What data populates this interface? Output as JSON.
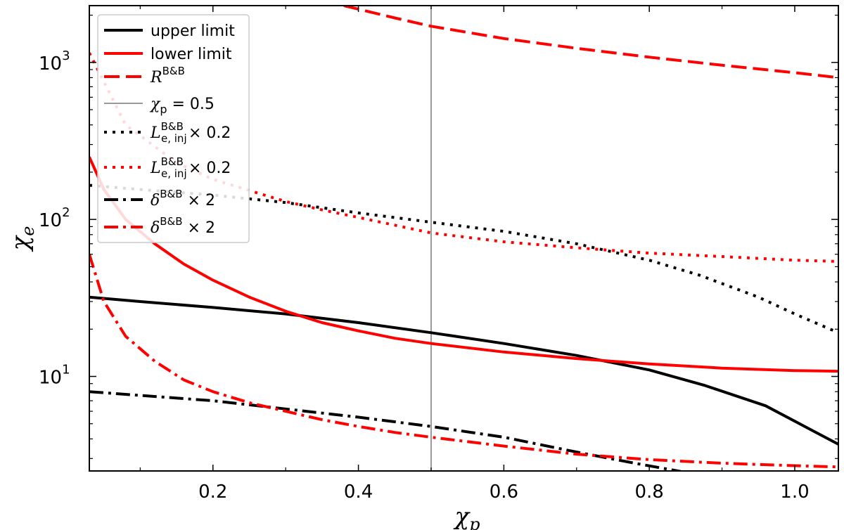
{
  "chart_data": {
    "type": "line",
    "xlabel": "χp",
    "ylabel": "χe",
    "xlim": [
      0.03,
      1.06
    ],
    "ylim": [
      2.5,
      2300
    ],
    "yscale": "log",
    "grid": false,
    "legend_position": "top-left",
    "xticks": [
      {
        "value": 0.2,
        "label": "0.2"
      },
      {
        "value": 0.4,
        "label": "0.4"
      },
      {
        "value": 0.6,
        "label": "0.6"
      },
      {
        "value": 0.8,
        "label": "0.8"
      },
      {
        "value": 1.0,
        "label": "1.0"
      }
    ],
    "yticks": [
      {
        "value": 10,
        "base": "10",
        "exp": "1"
      },
      {
        "value": 100,
        "base": "10",
        "exp": "2"
      },
      {
        "value": 1000,
        "base": "10",
        "exp": "3"
      }
    ],
    "reference_line": {
      "x": 0.5,
      "color": "#999999"
    },
    "series": [
      {
        "legend": "upper limit",
        "color": "#000000",
        "style": "solid",
        "x": [
          0.03,
          0.1,
          0.2,
          0.3,
          0.4,
          0.5,
          0.6,
          0.7,
          0.8,
          0.875,
          0.96,
          1.06
        ],
        "y": [
          32,
          30,
          27.5,
          25,
          22,
          19,
          16.2,
          13.6,
          11,
          8.8,
          6.5,
          3.7
        ]
      },
      {
        "legend": "lower limit",
        "color": "#ff0000",
        "style": "solid",
        "x": [
          0.03,
          0.05,
          0.08,
          0.12,
          0.16,
          0.2,
          0.25,
          0.3,
          0.35,
          0.4,
          0.45,
          0.5,
          0.6,
          0.7,
          0.8,
          0.9,
          1.0,
          1.06
        ],
        "y": [
          250,
          155,
          100,
          70,
          52,
          41,
          32,
          26,
          22,
          19.5,
          17.5,
          16.2,
          14.3,
          13,
          12,
          11.3,
          10.9,
          10.8
        ]
      },
      {
        "legend": "R^B&B",
        "color": "#ff0000",
        "style": "dashed",
        "x": [
          0.38,
          0.45,
          0.5,
          0.6,
          0.7,
          0.8,
          0.9,
          1.0,
          1.06
        ],
        "y": [
          2300,
          1920,
          1700,
          1420,
          1230,
          1080,
          960,
          860,
          800
        ]
      },
      {
        "legend": "L_e,inj^B&B × 0.2",
        "color": "#000000",
        "style": "dotted",
        "x": [
          0.03,
          0.1,
          0.2,
          0.3,
          0.4,
          0.5,
          0.6,
          0.7,
          0.8,
          0.87,
          0.95,
          1.0,
          1.06
        ],
        "y": [
          165,
          155,
          143,
          128,
          110,
          96,
          84,
          70,
          55,
          44,
          32,
          25,
          19
        ]
      },
      {
        "legend": "L_e,inj^B&B × 0.2",
        "color": "#ff0000",
        "style": "dotted",
        "x": [
          0.03,
          0.08,
          0.15,
          0.2,
          0.26,
          0.3,
          0.35,
          0.4,
          0.5,
          0.6,
          0.7,
          0.8,
          0.9,
          1.0,
          1.06
        ],
        "y": [
          1150,
          400,
          230,
          180,
          148,
          130,
          115,
          103,
          82,
          72,
          66,
          61,
          58,
          55,
          54
        ]
      },
      {
        "legend": "δ^B&B × 2",
        "color": "#000000",
        "style": "dashdot",
        "x": [
          0.03,
          0.2,
          0.4,
          0.5,
          0.6,
          0.7,
          0.78,
          0.85
        ],
        "y": [
          8,
          7,
          5.5,
          4.8,
          4.1,
          3.3,
          2.8,
          2.45
        ]
      },
      {
        "legend": "δ^B&B × 2",
        "color": "#ff0000",
        "style": "dashdot",
        "x": [
          0.03,
          0.05,
          0.08,
          0.12,
          0.16,
          0.2,
          0.25,
          0.3,
          0.35,
          0.4,
          0.45,
          0.5,
          0.6,
          0.7,
          0.8,
          0.9,
          1.0,
          1.06
        ],
        "y": [
          60,
          30,
          18,
          12.5,
          9.5,
          8,
          6.8,
          6,
          5.3,
          4.8,
          4.4,
          4.1,
          3.6,
          3.2,
          2.95,
          2.8,
          2.7,
          2.65
        ]
      }
    ]
  }
}
